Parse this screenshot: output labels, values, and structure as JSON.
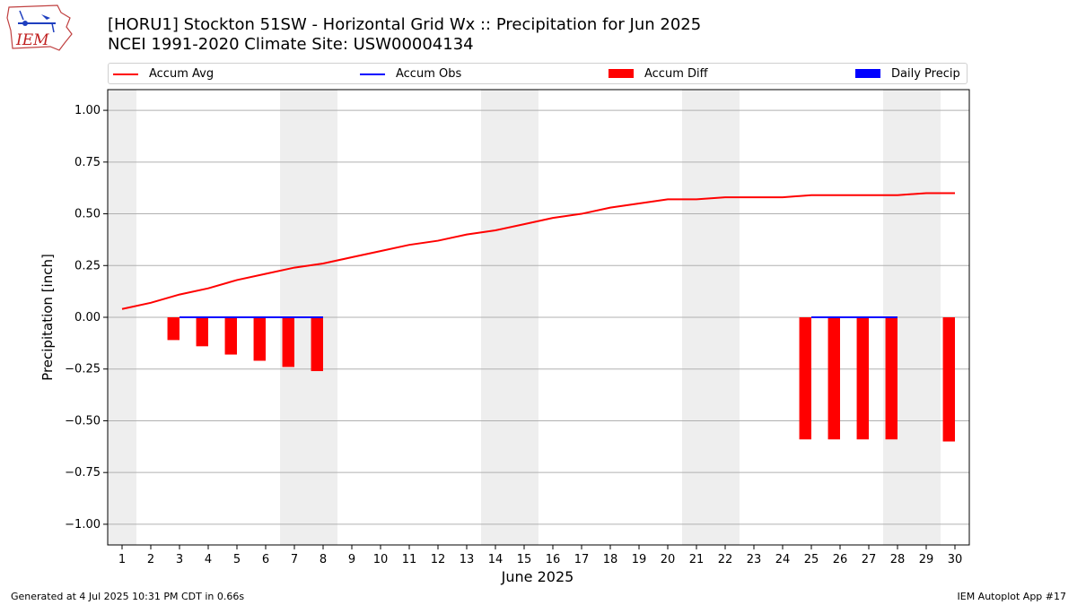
{
  "logo": {
    "text": "IEM"
  },
  "title": {
    "line1": "[HORU1] Stockton 51SW - Horizontal Grid Wx :: Precipitation for Jun 2025",
    "line2": "NCEI 1991-2020 Climate Site: USW00004134"
  },
  "legend": {
    "items": [
      {
        "label": "Accum Avg",
        "color": "#ff0000",
        "kind": "line"
      },
      {
        "label": "Accum Obs",
        "color": "#0000ff",
        "kind": "line"
      },
      {
        "label": "Accum Diff",
        "color": "#ff0000",
        "kind": "box"
      },
      {
        "label": "Daily Precip",
        "color": "#0000ff",
        "kind": "box"
      }
    ],
    "placement": "top"
  },
  "chart_data": {
    "type": "bar",
    "xlabel": "June 2025",
    "ylabel": "Precipitation [inch]",
    "x": [
      1,
      2,
      3,
      4,
      5,
      6,
      7,
      8,
      9,
      10,
      11,
      12,
      13,
      14,
      15,
      16,
      17,
      18,
      19,
      20,
      21,
      22,
      23,
      24,
      25,
      26,
      27,
      28,
      29,
      30
    ],
    "ylim": [
      -1.1,
      1.1
    ],
    "yticks": [
      1.0,
      0.75,
      0.5,
      0.25,
      0.0,
      -0.25,
      -0.5,
      -0.75,
      -1.0
    ],
    "ytick_labels": [
      "1.00",
      "0.75",
      "0.50",
      "0.25",
      "0.00",
      "−0.25",
      "−0.50",
      "−0.75",
      "−1.00"
    ],
    "grid": true,
    "weekend_days": [
      1,
      7,
      8,
      14,
      15,
      21,
      22,
      28,
      29
    ],
    "series": [
      {
        "name": "Accum Avg",
        "type": "line",
        "color": "#ff0000",
        "x": [
          1,
          2,
          3,
          4,
          5,
          6,
          7,
          8,
          9,
          10,
          11,
          12,
          13,
          14,
          15,
          16,
          17,
          18,
          19,
          20,
          21,
          22,
          23,
          24,
          25,
          26,
          27,
          28,
          29,
          30
        ],
        "values": [
          0.04,
          0.07,
          0.11,
          0.14,
          0.18,
          0.21,
          0.24,
          0.26,
          0.29,
          0.32,
          0.35,
          0.37,
          0.4,
          0.42,
          0.45,
          0.48,
          0.5,
          0.53,
          0.55,
          0.57,
          0.57,
          0.58,
          0.58,
          0.58,
          0.59,
          0.59,
          0.59,
          0.59,
          0.6,
          0.6
        ]
      },
      {
        "name": "Accum Obs",
        "type": "line",
        "color": "#0000ff",
        "segments": [
          {
            "x": [
              3,
              4,
              5,
              6,
              7,
              8
            ],
            "values": [
              0,
              0,
              0,
              0,
              0,
              0
            ]
          },
          {
            "x": [
              25,
              26,
              27,
              28
            ],
            "values": [
              0,
              0,
              0,
              0
            ]
          }
        ]
      },
      {
        "name": "Accum Diff",
        "type": "bar",
        "color": "#ff0000",
        "x": [
          3,
          4,
          5,
          6,
          7,
          8,
          25,
          26,
          27,
          28,
          30
        ],
        "values": [
          -0.11,
          -0.14,
          -0.18,
          -0.21,
          -0.24,
          -0.26,
          -0.59,
          -0.59,
          -0.59,
          -0.59,
          -0.6
        ]
      },
      {
        "name": "Daily Precip",
        "type": "bar",
        "color": "#0000ff",
        "x": [],
        "values": []
      }
    ]
  },
  "footer": {
    "left": "Generated at 4 Jul 2025 10:31 PM CDT in 0.66s",
    "right": "IEM Autoplot App #17"
  }
}
